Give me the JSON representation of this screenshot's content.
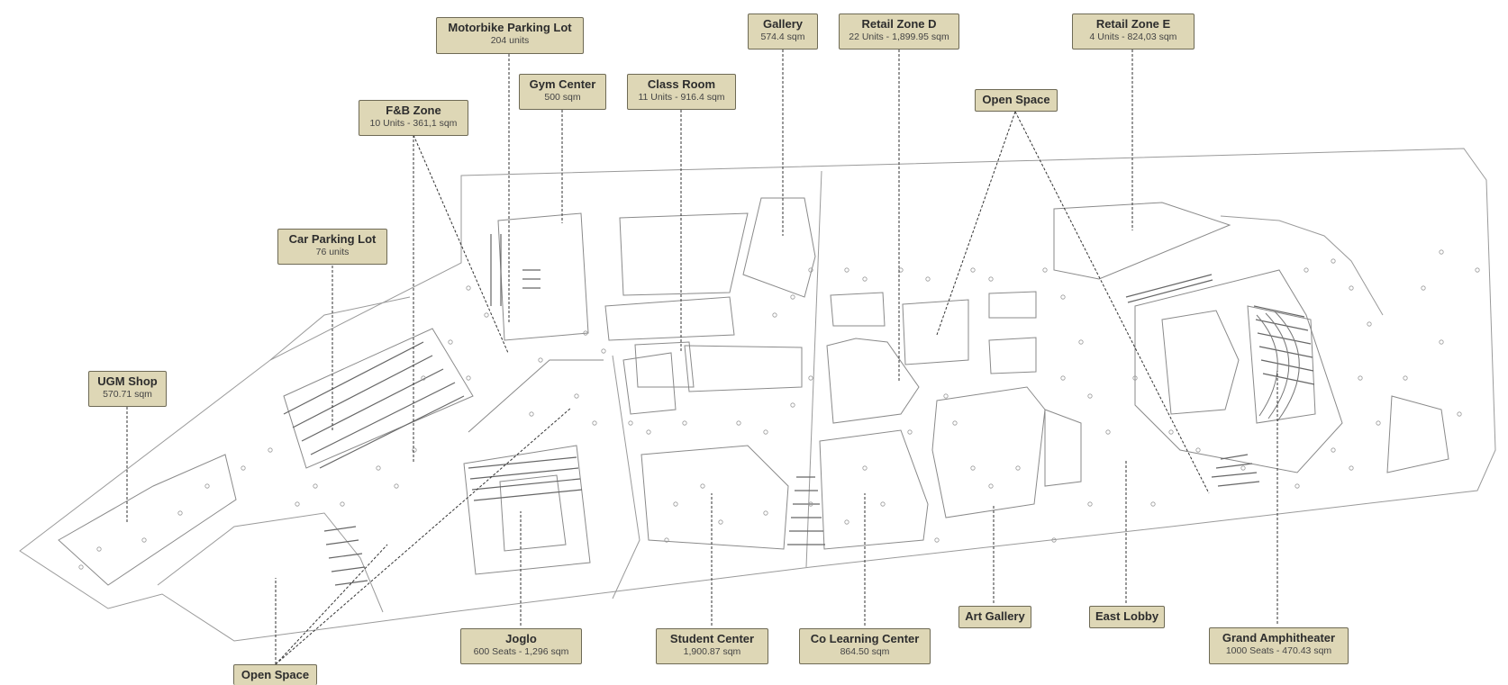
{
  "labels": {
    "motorbike": {
      "title": "Motorbike Parking Lot",
      "sub": "204 units"
    },
    "gallery": {
      "title": "Gallery",
      "sub": "574.4 sqm"
    },
    "retail_d": {
      "title": "Retail Zone D",
      "sub": "22 Units - 1,899.95 sqm"
    },
    "retail_e": {
      "title": "Retail Zone E",
      "sub": "4 Units - 824,03 sqm"
    },
    "gym": {
      "title": "Gym Center",
      "sub": "500 sqm"
    },
    "classroom": {
      "title": "Class Room",
      "sub": "11 Units - 916.4 sqm"
    },
    "open_space_top": {
      "title": "Open Space"
    },
    "fnb": {
      "title": "F&B Zone",
      "sub": "10 Units - 361,1 sqm"
    },
    "car_parking": {
      "title": "Car Parking Lot",
      "sub": "76 units"
    },
    "ugm_shop": {
      "title": "UGM Shop",
      "sub": "570.71 sqm"
    },
    "joglo": {
      "title": "Joglo",
      "sub": "600 Seats - 1,296 sqm"
    },
    "student_center": {
      "title": "Student Center",
      "sub": "1,900.87 sqm"
    },
    "co_learning": {
      "title": "Co Learning Center",
      "sub": "864.50 sqm"
    },
    "art_gallery": {
      "title": "Art Gallery"
    },
    "east_lobby": {
      "title": "East Lobby"
    },
    "amphitheater": {
      "title": "Grand Amphitheater",
      "sub": "1000 Seats - 470.43 sqm"
    },
    "open_space_bottom": {
      "title": "Open Space"
    }
  },
  "colors": {
    "label_fill": "#ded7b6",
    "label_border": "#6e6a55",
    "plan_line": "#9a9a9a",
    "leader": "#333333"
  }
}
